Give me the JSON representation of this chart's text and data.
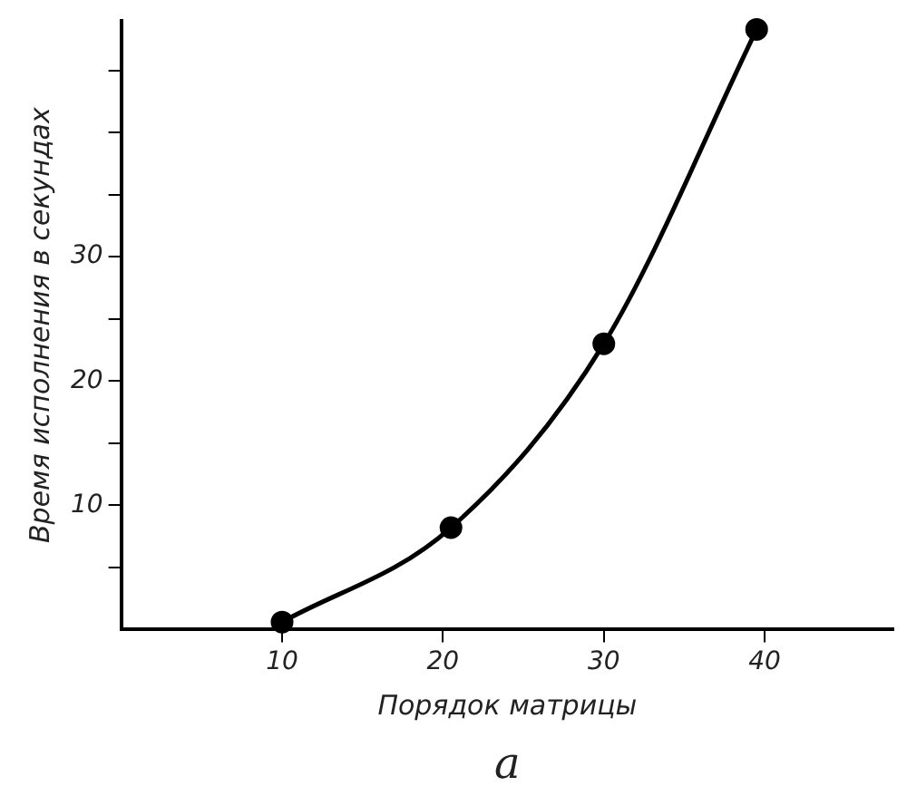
{
  "chart_data": {
    "type": "line",
    "xlabel": "Порядок матрицы",
    "ylabel": "Время исполнения в секундах",
    "annotations": [
      "a"
    ],
    "x": [
      10,
      20.5,
      30,
      39.5
    ],
    "series": [
      {
        "color": "#000000",
        "values": [
          0.6,
          8.2,
          23,
          48.3
        ]
      }
    ],
    "xlim": [
      0,
      48
    ],
    "xticks": [
      10,
      20,
      30,
      40
    ],
    "ylim": [
      0,
      49
    ],
    "yticks": [
      {
        "value": 5,
        "label": null
      },
      10,
      {
        "value": 15,
        "label": null
      },
      20,
      {
        "value": 25,
        "label": null
      },
      30,
      {
        "value": 35,
        "label": null
      },
      {
        "value": 40,
        "label": null
      },
      {
        "value": 45,
        "label": null
      }
    ],
    "grid": false,
    "legend": false,
    "marker": "circle",
    "line_style": "solid"
  }
}
